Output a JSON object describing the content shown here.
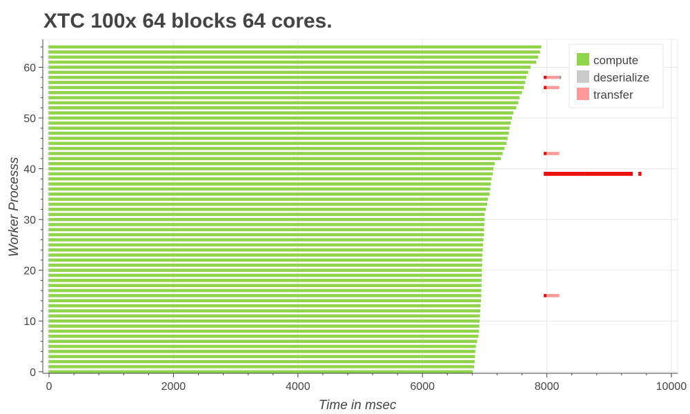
{
  "chart_data": {
    "type": "bar",
    "orientation": "horizontal-gantt",
    "title": "XTC 100x 64 blocks 64 cores.",
    "xlabel": "Time in msec",
    "ylabel": "Worker Processs",
    "xlim": [
      -100,
      10100
    ],
    "ylim": [
      -0.3,
      65.5
    ],
    "x_ticks": [
      0,
      2000,
      4000,
      6000,
      8000,
      10000
    ],
    "y_ticks": [
      0,
      10,
      20,
      30,
      40,
      50,
      60
    ],
    "grid": true,
    "legend_position": "top-right",
    "series": [
      {
        "name": "compute",
        "color": "#8fd44b"
      },
      {
        "name": "deserialize",
        "color": "#c9c9c9"
      },
      {
        "name": "transfer",
        "color": "#ff9a9a"
      }
    ],
    "compute_end_by_worker": [
      6810,
      6830,
      6840,
      6845,
      6850,
      6860,
      6880,
      6900,
      6910,
      6915,
      6920,
      6925,
      6930,
      6935,
      6940,
      6945,
      6945,
      6950,
      6950,
      6955,
      6955,
      6960,
      6960,
      6965,
      6970,
      6975,
      6980,
      6990,
      6990,
      6995,
      7000,
      7000,
      7020,
      7040,
      7050,
      7080,
      7090,
      7100,
      7110,
      7130,
      7140,
      7160,
      7260,
      7290,
      7320,
      7350,
      7370,
      7390,
      7400,
      7420,
      7440,
      7460,
      7510,
      7540,
      7560,
      7600,
      7630,
      7650,
      7670,
      7700,
      7740,
      7830,
      7860,
      7890,
      7910
    ],
    "tail_segments": [
      {
        "worker": 15,
        "start": 7950,
        "end": 8200,
        "type": "transfer"
      },
      {
        "worker": 43,
        "start": 7950,
        "end": 8200,
        "type": "transfer"
      },
      {
        "worker": 56,
        "start": 7950,
        "end": 8200,
        "type": "transfer"
      },
      {
        "worker": 58,
        "start": 7950,
        "end": 8200,
        "type": "transfer"
      },
      {
        "worker": 58,
        "start": 8200,
        "end": 8230,
        "type": "deserialize"
      },
      {
        "worker": 39,
        "start": 7950,
        "end": 8600,
        "type": "transfer-dense"
      },
      {
        "worker": 39,
        "start": 8600,
        "end": 9380,
        "type": "transfer-dense"
      },
      {
        "worker": 39,
        "start": 9470,
        "end": 9520,
        "type": "transfer-dense"
      }
    ]
  }
}
